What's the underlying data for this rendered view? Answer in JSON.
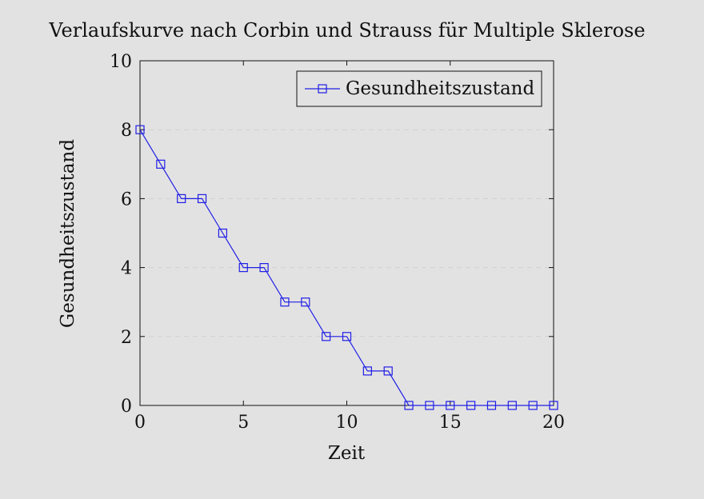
{
  "chart_data": {
    "type": "line",
    "title": "Verlaufskurve nach Corbin und Strauss für Multiple Sklerose",
    "xlabel": "Zeit",
    "ylabel": "Gesundheitszustand",
    "xlim": [
      0,
      20
    ],
    "ylim": [
      0,
      10
    ],
    "xticks": [
      0,
      5,
      10,
      15,
      20
    ],
    "yticks": [
      0,
      2,
      4,
      6,
      8,
      10
    ],
    "grid": "horizontal-dashed",
    "legend_position": "top-right",
    "series": [
      {
        "name": "Gesundheitszustand",
        "color": "#1f1fe6",
        "marker": "square",
        "x": [
          0,
          1,
          2,
          3,
          4,
          5,
          6,
          7,
          8,
          9,
          10,
          11,
          12,
          13,
          14,
          15,
          16,
          17,
          18,
          19,
          20
        ],
        "y": [
          8,
          7,
          6,
          6,
          5,
          4,
          4,
          3,
          3,
          2,
          2,
          1,
          1,
          0,
          0,
          0,
          0,
          0,
          0,
          0,
          0
        ]
      }
    ]
  }
}
